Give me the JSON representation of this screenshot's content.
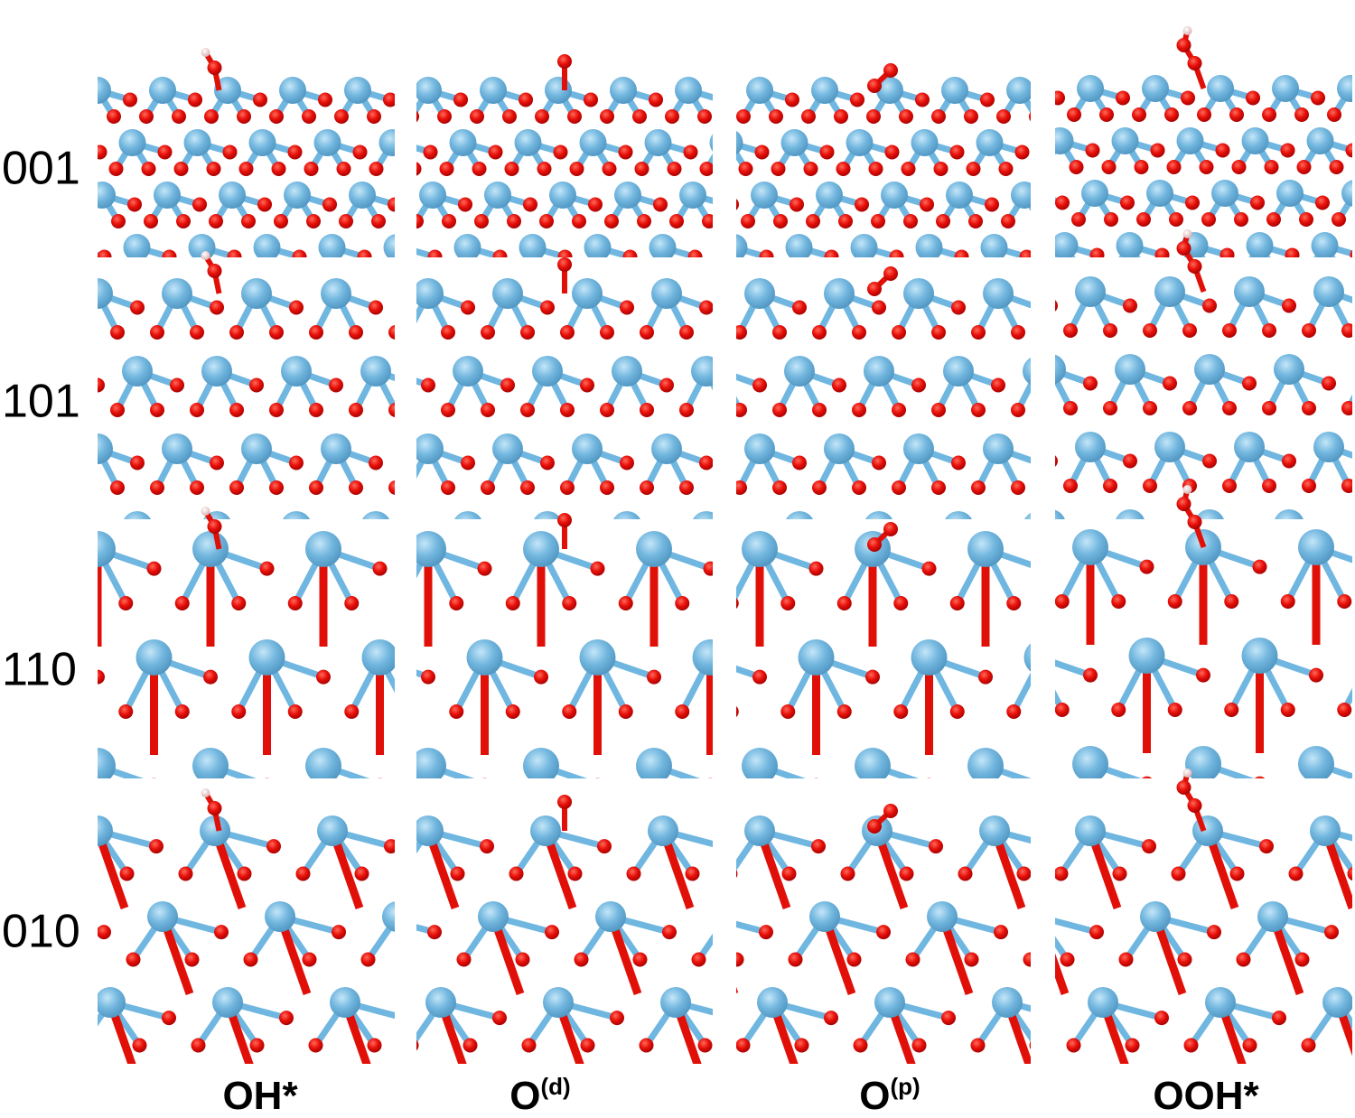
{
  "rows": [
    "001",
    "101",
    "110",
    "010"
  ],
  "columns": [
    {
      "base": "OH*"
    },
    {
      "base": "O",
      "sup": "(d)"
    },
    {
      "base": "O",
      "sup": "(p)"
    },
    {
      "base": "OOH*"
    }
  ]
}
